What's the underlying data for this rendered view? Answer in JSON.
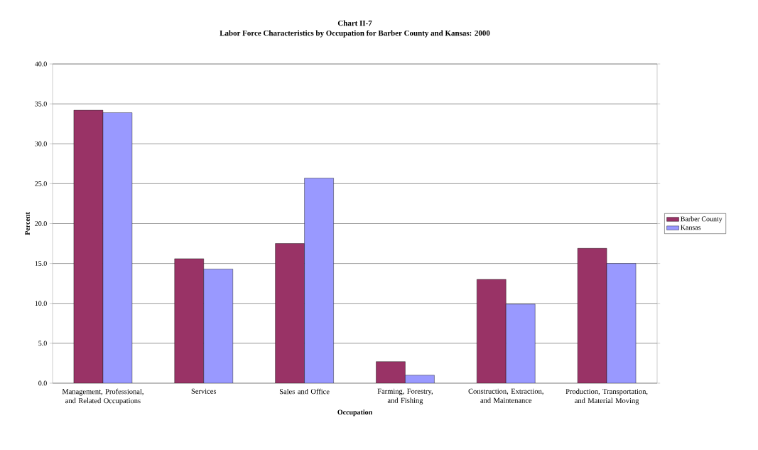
{
  "chart_data": {
    "type": "bar",
    "title": "Chart II-7",
    "subtitle": "Labor Force Characteristics by Occupation for Barber County and Kansas: 2000",
    "xlabel": "Occupation",
    "ylabel": "Percent",
    "categories": [
      "Management, Professional, and Related Occupations",
      "Services",
      "Sales and Office",
      "Farming, Forestry, and Fishing",
      "Construction, Extraction, and Maintenance",
      "Production, Transportation, and Material Moving"
    ],
    "series": [
      {
        "name": "Barber County",
        "color": "#993366",
        "values": [
          34.2,
          15.6,
          17.5,
          2.7,
          13.0,
          16.9
        ]
      },
      {
        "name": "Kansas",
        "color": "#9999ff",
        "values": [
          33.9,
          14.3,
          25.7,
          1.0,
          9.9,
          15.0
        ]
      }
    ],
    "ylim": [
      0,
      40
    ],
    "yticks": [
      {
        "value": 0,
        "label": "0.0"
      },
      {
        "value": 5,
        "label": "5.0"
      },
      {
        "value": 10,
        "label": "10.0"
      },
      {
        "value": 15,
        "label": "15.0"
      },
      {
        "value": 20,
        "label": "20.0"
      },
      {
        "value": 25,
        "label": "25.0"
      },
      {
        "value": 30,
        "label": "30.0"
      },
      {
        "value": 35,
        "label": "35.0"
      },
      {
        "value": 40,
        "label": "40.0"
      }
    ],
    "grid": "y",
    "legend": "right"
  }
}
